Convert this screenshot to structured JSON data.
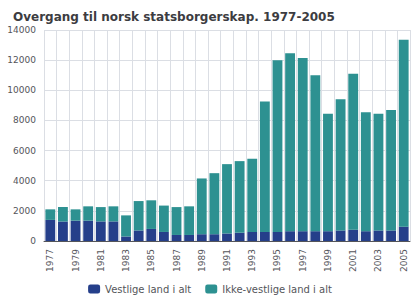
{
  "chart_data": {
    "type": "bar",
    "title": "Overgang til norsk statsborgerskap. 1977-2005",
    "categories": [
      "1977",
      null,
      "1979",
      null,
      "1981",
      null,
      "1983",
      null,
      "1985",
      null,
      "1987",
      null,
      "1989",
      null,
      "1991",
      null,
      "1993",
      null,
      "1995",
      null,
      "1997",
      null,
      "1999",
      null,
      "2001",
      null,
      "2003",
      null,
      "2005"
    ],
    "series": [
      {
        "name": "Vestlige land i alt",
        "color": "#253f8a",
        "values": [
          1400,
          1300,
          1350,
          1350,
          1300,
          1300,
          300,
          700,
          800,
          600,
          400,
          400,
          450,
          450,
          500,
          550,
          600,
          600,
          600,
          650,
          650,
          650,
          650,
          700,
          750,
          650,
          700,
          700,
          950
        ]
      },
      {
        "name": "Ikke-vestlige land i alt",
        "color": "#2d9191",
        "values": [
          700,
          950,
          750,
          950,
          950,
          1000,
          1400,
          1950,
          1900,
          1750,
          1850,
          1900,
          3700,
          4050,
          4600,
          4750,
          4850,
          8650,
          11400,
          11800,
          11500,
          10350,
          7800,
          8700,
          10350,
          7900,
          7750,
          8000,
          12400
        ]
      }
    ],
    "stacked": true,
    "ylim": [
      0,
      14000
    ],
    "yticks": [
      0,
      2000,
      4000,
      6000,
      8000,
      10000,
      12000,
      14000
    ],
    "grid": true,
    "legend": "bottom"
  }
}
